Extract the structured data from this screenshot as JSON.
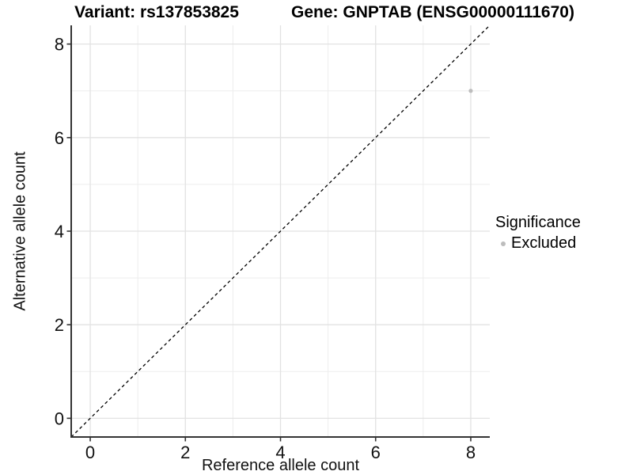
{
  "chart_data": {
    "type": "scatter",
    "title_left": "Variant: rs137853825",
    "title_right": "Gene: GNPTAB (ENSG00000111670)",
    "xlabel": "Reference allele count",
    "ylabel": "Alternative allele count",
    "xlim": [
      -0.4,
      8.4
    ],
    "ylim": [
      -0.4,
      8.4
    ],
    "xticks": [
      0,
      2,
      4,
      6,
      8
    ],
    "yticks": [
      0,
      2,
      4,
      6,
      8
    ],
    "grid_minor_values": [
      1,
      3,
      5,
      7
    ],
    "grid": "on",
    "identity_line": {
      "slope": 1,
      "intercept": 0,
      "style": "dashed",
      "color": "#000000"
    },
    "points": [
      {
        "x": 8,
        "y": 7,
        "significance": "Excluded",
        "color": "#bdbdbd",
        "radius": 2.6
      }
    ],
    "legend": {
      "title": "Significance",
      "position": "right",
      "items": [
        {
          "label": "Excluded",
          "color": "#bdbdbd"
        }
      ]
    },
    "colors": {
      "grid_major": "#e2e2e2",
      "grid_minor": "#ededed",
      "axis_line": "#333333",
      "tick_mark": "#333333",
      "tick_text": "#111111",
      "background": "#ffffff"
    }
  }
}
